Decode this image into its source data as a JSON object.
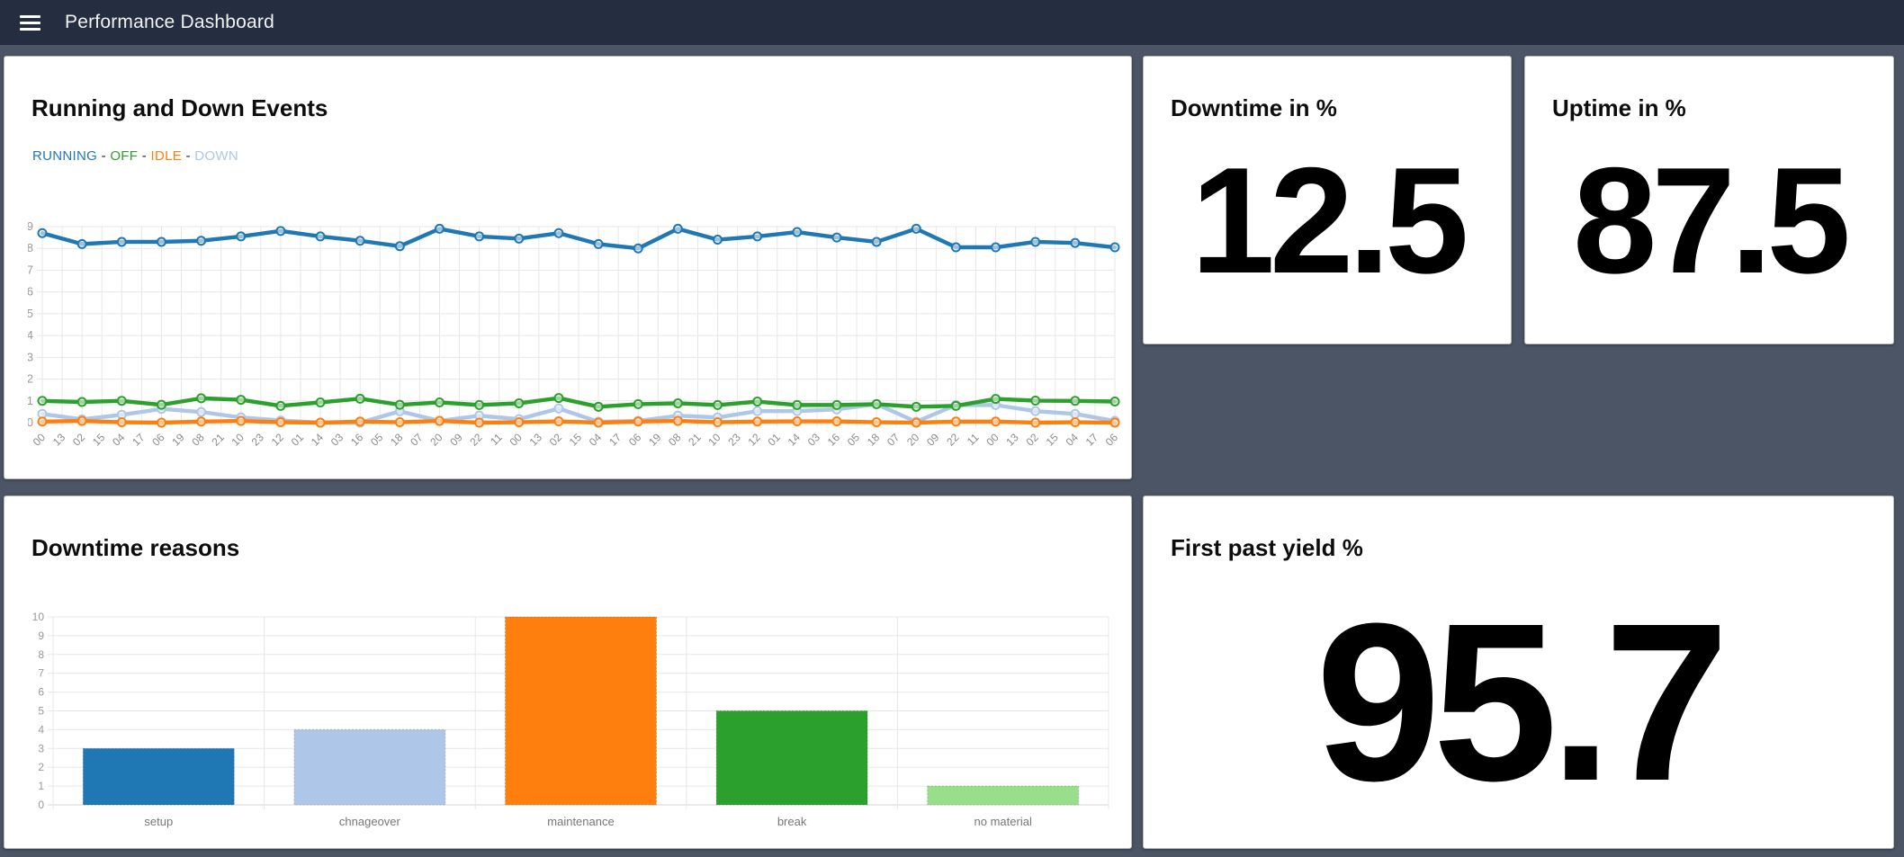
{
  "navbar": {
    "title": "Performance Dashboard"
  },
  "cards": {
    "events": {
      "title": "Running and Down Events",
      "legend_separator": "-"
    },
    "downtime": {
      "title": "Downtime in %",
      "value": "12.5"
    },
    "uptime": {
      "title": "Uptime in %",
      "value": "87.5"
    },
    "reasons": {
      "title": "Downtime reasons"
    },
    "fpy": {
      "title": "First past yield %",
      "value": "95.7"
    }
  },
  "colors": {
    "navbar_bg": "#242e40",
    "page_bg": "#4c5565",
    "card_bg": "#ffffff",
    "grid_line": "#e7e7e7",
    "axis_text": "#999999",
    "blue": "#1f77b4",
    "light_blue": "#aec7e8",
    "orange": "#ff7f0e",
    "green": "#2ca02c",
    "light_green": "#98df8a"
  },
  "chart_data": [
    {
      "type": "line",
      "title": "Running and Down Events",
      "ylim": [
        0,
        9
      ],
      "y_ticks": [
        0,
        1,
        2,
        3,
        4,
        5,
        6,
        7,
        8,
        9
      ],
      "grid": true,
      "legend_position": "top-left",
      "x_tick_labels": [
        "00",
        "13",
        "02",
        "15",
        "04",
        "17",
        "06",
        "19",
        "08",
        "21",
        "10",
        "23",
        "12",
        "01",
        "14",
        "03",
        "16",
        "05",
        "18",
        "07",
        "20",
        "09",
        "22",
        "11",
        "00",
        "13",
        "02",
        "15",
        "04",
        "17",
        "06",
        "19",
        "08",
        "21",
        "10",
        "23",
        "12",
        "01",
        "14",
        "03",
        "16",
        "05",
        "18",
        "07",
        "20",
        "09",
        "22",
        "11",
        "00",
        "13",
        "02",
        "15",
        "04",
        "17",
        "06"
      ],
      "points_on_every_nth_tick": 2,
      "series": [
        {
          "name": "RUNNING",
          "color": "#1f77b4",
          "values": [
            8.7,
            8.2,
            8.3,
            8.3,
            8.35,
            8.55,
            8.8,
            8.55,
            8.35,
            8.1,
            8.9,
            8.55,
            8.45,
            8.7,
            8.2,
            8.0,
            8.9,
            8.4,
            8.55,
            8.75,
            8.5,
            8.3,
            8.9,
            8.05,
            8.05,
            8.3,
            8.25,
            8.05
          ]
        },
        {
          "name": "OFF",
          "color": "#2ca02c",
          "values": [
            1.0,
            0.95,
            1.0,
            0.82,
            1.12,
            1.05,
            0.77,
            0.93,
            1.1,
            0.82,
            0.93,
            0.81,
            0.89,
            1.13,
            0.73,
            0.85,
            0.89,
            0.81,
            0.97,
            0.81,
            0.81,
            0.85,
            0.73,
            0.77,
            1.09,
            1.01,
            1.0,
            0.97
          ]
        },
        {
          "name": "IDLE",
          "color": "#ff7f0e",
          "values": [
            0.05,
            0.08,
            0.02,
            0.0,
            0.05,
            0.08,
            0.02,
            0.0,
            0.05,
            0.02,
            0.08,
            0.0,
            0.02,
            0.06,
            0.0,
            0.05,
            0.08,
            0.02,
            0.05,
            0.06,
            0.06,
            0.02,
            0.0,
            0.05,
            0.05,
            0.0,
            0.02,
            0.0
          ]
        },
        {
          "name": "DOWN",
          "color": "#aec7e8",
          "values": [
            0.4,
            0.15,
            0.36,
            0.63,
            0.49,
            0.24,
            0.1,
            0.0,
            0.0,
            0.52,
            0.08,
            0.32,
            0.16,
            0.65,
            0.04,
            0.08,
            0.32,
            0.24,
            0.53,
            0.53,
            0.61,
            0.85,
            0.04,
            0.81,
            0.81,
            0.53,
            0.4,
            0.08
          ]
        }
      ]
    },
    {
      "type": "bar",
      "title": "Downtime reasons",
      "categories": [
        "setup",
        "chnageover",
        "maintenance",
        "break",
        "no material"
      ],
      "values": [
        3,
        4,
        10,
        5,
        1
      ],
      "colors": [
        "#1f77b4",
        "#aec7e8",
        "#ff7f0e",
        "#2ca02c",
        "#98df8a"
      ],
      "ylim": [
        0,
        10
      ],
      "y_ticks": [
        0,
        1,
        2,
        3,
        4,
        5,
        6,
        7,
        8,
        9,
        10
      ],
      "grid": true,
      "legend_position": "none"
    }
  ]
}
